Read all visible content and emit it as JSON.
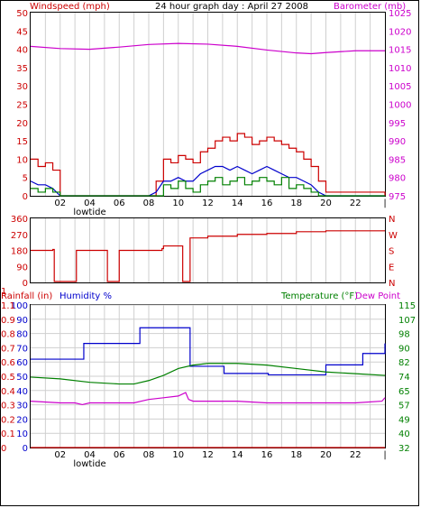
{
  "panel1": {
    "title": "24 hour graph day : April 27 2008",
    "left_label": "Windspeed (mph)",
    "right_label": "Barometer (mb)"
  },
  "panel3": {
    "rain_label": "Rainfall (in)",
    "humidity_label": "Humidity %",
    "temp_label": "Temperature (°F)",
    "dew_label": "Dew Point"
  },
  "x_ticks": [
    "02",
    "04",
    "06",
    "08",
    "10",
    "12",
    "14",
    "16",
    "18",
    "20",
    "22",
    "|"
  ],
  "x_extra_label": "lowtide",
  "colors": {
    "wind": "#cc0000",
    "wind_avg": "#0000cc",
    "wind_green": "#008000",
    "barometer": "#cc00cc",
    "direction": "#cc0000",
    "humidity": "#0000cc",
    "temperature": "#008000",
    "dewpoint": "#cc00cc",
    "rainfall": "#cc0000",
    "grid": "#cfcfcf"
  },
  "chart_data": [
    {
      "type": "line",
      "title": "24 hour graph day : April 27 2008",
      "ylabel": "Windspeed (mph)",
      "y2label": "Barometer (mb)",
      "xlim": [
        0,
        24
      ],
      "ylim": [
        0,
        50
      ],
      "y2lim": [
        975,
        1025
      ],
      "yticks": [
        0,
        5,
        10,
        15,
        20,
        25,
        30,
        35,
        40,
        45,
        50
      ],
      "y2ticks": [
        975,
        980,
        985,
        990,
        995,
        1000,
        1005,
        1010,
        1015,
        1020,
        1025
      ],
      "series": [
        {
          "name": "Windspeed (mph)",
          "axis": "left",
          "style": "step",
          "x": [
            0,
            0.5,
            1,
            1.5,
            2,
            3,
            8,
            8.5,
            9,
            9.5,
            10,
            10.5,
            11,
            11.5,
            12,
            12.5,
            13,
            13.5,
            14,
            14.5,
            15,
            15.5,
            16,
            16.5,
            17,
            17.5,
            18,
            18.5,
            19,
            19.5,
            20,
            24
          ],
          "y": [
            10,
            8,
            9,
            7,
            0,
            0,
            0,
            4,
            10,
            9,
            11,
            10,
            9,
            12,
            13,
            15,
            16,
            15,
            17,
            16,
            14,
            15,
            16,
            15,
            14,
            13,
            12,
            10,
            8,
            4,
            1,
            0
          ]
        },
        {
          "name": "Wind avg",
          "axis": "left",
          "style": "line",
          "x": [
            0,
            0.5,
            1,
            1.5,
            2,
            3,
            8,
            8.5,
            9,
            9.5,
            10,
            10.5,
            11,
            11.5,
            12,
            12.5,
            13,
            13.5,
            14,
            14.5,
            15,
            15.5,
            16,
            16.5,
            17,
            17.5,
            18,
            18.5,
            19,
            19.5,
            20,
            24
          ],
          "y": [
            4,
            3,
            3,
            2,
            0,
            0,
            0,
            1,
            4,
            4,
            5,
            4,
            4,
            6,
            7,
            8,
            8,
            7,
            8,
            7,
            6,
            7,
            8,
            7,
            6,
            5,
            5,
            4,
            3,
            1,
            0,
            0
          ]
        },
        {
          "name": "Wind gust",
          "axis": "left",
          "style": "step",
          "x": [
            0,
            0.5,
            1,
            1.5,
            2,
            3,
            8,
            8.5,
            9,
            9.5,
            10,
            10.5,
            11,
            11.5,
            12,
            12.5,
            13,
            13.5,
            14,
            14.5,
            15,
            15.5,
            16,
            16.5,
            17,
            17.5,
            18,
            18.5,
            19,
            19.5,
            20,
            24
          ],
          "y": [
            2,
            1,
            2,
            1,
            0,
            0,
            0,
            0,
            3,
            2,
            4,
            2,
            1,
            3,
            4,
            5,
            3,
            4,
            5,
            3,
            4,
            5,
            4,
            3,
            5,
            2,
            3,
            2,
            1,
            0,
            0,
            0
          ]
        },
        {
          "name": "Barometer (mb)",
          "axis": "right",
          "style": "line",
          "x": [
            0,
            2,
            4,
            6,
            8,
            10,
            12,
            14,
            16,
            18,
            19,
            20,
            22,
            24
          ],
          "y": [
            1015.8,
            1015.2,
            1015.0,
            1015.6,
            1016.3,
            1016.6,
            1016.4,
            1015.8,
            1014.8,
            1014.0,
            1013.8,
            1014.1,
            1014.6,
            1014.6
          ]
        }
      ]
    },
    {
      "type": "line",
      "title": "",
      "ylabel": "",
      "y2label": "",
      "xlim": [
        0,
        24
      ],
      "ylim": [
        0,
        360
      ],
      "yticks": [
        0,
        90,
        180,
        270,
        360
      ],
      "y2ticks": [
        "N",
        "W",
        "S",
        "E",
        "N"
      ],
      "series": [
        {
          "name": "Wind direction",
          "style": "step",
          "x": [
            0,
            1.5,
            1.6,
            3.0,
            3.1,
            5.1,
            5.2,
            5.9,
            6.0,
            8.9,
            9.0,
            10.2,
            10.3,
            10.7,
            10.8,
            12.0,
            14.0,
            16.0,
            18.0,
            20.0,
            22.0,
            24.0
          ],
          "y": [
            180,
            185,
            5,
            5,
            180,
            180,
            5,
            5,
            180,
            190,
            205,
            205,
            5,
            5,
            250,
            260,
            270,
            275,
            285,
            290,
            290,
            290
          ]
        }
      ]
    },
    {
      "type": "line",
      "title": "",
      "ylabel": "Humidity %",
      "y2label": "Temperature (°F)",
      "xlim": [
        0,
        24
      ],
      "ylim": [
        0,
        100
      ],
      "y2lim": [
        32,
        115
      ],
      "yticks": [
        0,
        10,
        20,
        30,
        40,
        50,
        60,
        70,
        80,
        90,
        100
      ],
      "y2ticks": [
        32,
        40,
        49,
        57,
        65,
        74,
        82,
        90,
        98,
        107,
        115
      ],
      "rain_ticks": [
        0.0,
        0.1,
        0.2,
        0.3,
        0.4,
        0.5,
        0.6,
        0.7,
        0.8,
        0.9,
        1.1,
        1
      ],
      "series": [
        {
          "name": "Humidity %",
          "axis": "left",
          "style": "step",
          "x": [
            0,
            3.5,
            3.6,
            7.3,
            7.4,
            10.7,
            10.8,
            13.0,
            13.1,
            16.0,
            16.1,
            19.9,
            20.0,
            22.4,
            22.5,
            23.8,
            24.0
          ],
          "y": [
            62,
            62,
            73,
            73,
            84,
            84,
            57,
            57,
            52,
            52,
            51,
            51,
            58,
            58,
            66,
            66,
            73
          ]
        },
        {
          "name": "Temperature (°F)",
          "axis": "right",
          "style": "line",
          "x": [
            0,
            2,
            4,
            6,
            7,
            8,
            9,
            10,
            11,
            12,
            14,
            16,
            18,
            20,
            22,
            24
          ],
          "y": [
            73,
            72,
            70,
            69,
            69,
            71,
            74,
            78,
            80,
            81,
            81,
            80,
            78,
            76,
            75,
            74
          ]
        },
        {
          "name": "Dew Point",
          "axis": "right",
          "style": "line",
          "x": [
            0,
            2,
            3,
            3.5,
            4,
            6,
            7,
            7.5,
            8,
            9,
            10,
            10.5,
            10.7,
            11,
            12,
            14,
            16,
            18,
            20,
            22,
            23.8,
            24
          ],
          "y": [
            59,
            58,
            58,
            57,
            58,
            58,
            58,
            59,
            60,
            61,
            62,
            64,
            60,
            59,
            59,
            59,
            58,
            58,
            58,
            58,
            59,
            61
          ]
        },
        {
          "name": "Rainfall (in)",
          "axis": "rain",
          "style": "line",
          "x": [
            0,
            24
          ],
          "y": [
            0,
            0
          ]
        }
      ]
    }
  ]
}
